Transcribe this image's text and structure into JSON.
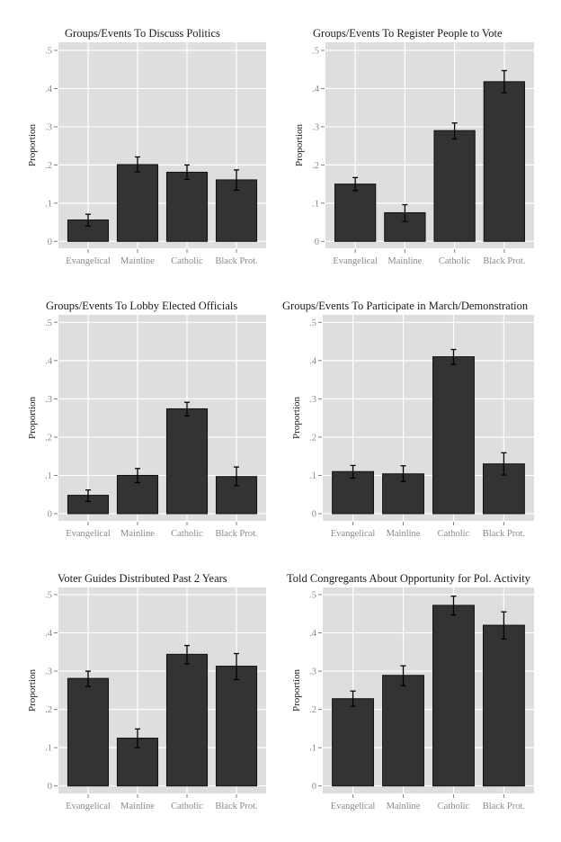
{
  "colors": {
    "panel_background": "#dedede",
    "grid": "#ffffff",
    "bar_fill": "#333333",
    "bar_border": "#111111",
    "errorbar": "#000000",
    "tick": "#7f7f7f"
  },
  "chart_data": [
    {
      "type": "bar",
      "title": "Groups/Events To Discuss Politics",
      "xlabel": "",
      "ylabel": "Proportion",
      "categories": [
        "Evangelical",
        "Mainline",
        "Catholic",
        "Black Prot."
      ],
      "values": [
        0.056,
        0.201,
        0.181,
        0.161
      ],
      "error_low": [
        0.04,
        0.182,
        0.162,
        0.134
      ],
      "error_high": [
        0.071,
        0.221,
        0.2,
        0.187
      ],
      "ylim": [
        0,
        0.5
      ],
      "yticks": [
        0,
        0.1,
        0.2,
        0.3,
        0.4,
        0.5
      ],
      "ytick_labels": [
        "0",
        ".1",
        ".2",
        ".3",
        ".4",
        ".5"
      ],
      "grid": true,
      "legend": "none"
    },
    {
      "type": "bar",
      "title": "Groups/Events To Register People to Vote",
      "xlabel": "",
      "ylabel": "Proportion",
      "categories": [
        "Evangelical",
        "Mainline",
        "Catholic",
        "Black Prot."
      ],
      "values": [
        0.15,
        0.075,
        0.29,
        0.418
      ],
      "error_low": [
        0.133,
        0.052,
        0.268,
        0.389
      ],
      "error_high": [
        0.167,
        0.096,
        0.31,
        0.447
      ],
      "ylim": [
        0,
        0.5
      ],
      "yticks": [
        0,
        0.1,
        0.2,
        0.3,
        0.4,
        0.5
      ],
      "ytick_labels": [
        "0",
        ".1",
        ".2",
        ".3",
        ".4",
        ".5"
      ],
      "grid": true,
      "legend": "none"
    },
    {
      "type": "bar",
      "title": "Groups/Events To Lobby Elected Officials",
      "xlabel": "",
      "ylabel": "Proportion",
      "categories": [
        "Evangelical",
        "Mainline",
        "Catholic",
        "Black Prot."
      ],
      "values": [
        0.048,
        0.1,
        0.274,
        0.097
      ],
      "error_low": [
        0.032,
        0.081,
        0.255,
        0.073
      ],
      "error_high": [
        0.062,
        0.118,
        0.291,
        0.122
      ],
      "ylim": [
        0,
        0.5
      ],
      "yticks": [
        0,
        0.1,
        0.2,
        0.3,
        0.4,
        0.5
      ],
      "ytick_labels": [
        "0",
        ".1",
        ".2",
        ".3",
        ".4",
        ".5"
      ],
      "grid": true,
      "legend": "none"
    },
    {
      "type": "bar",
      "title": "Groups/Events To Participate in March/Demonstration",
      "xlabel": "",
      "ylabel": "Proportion",
      "categories": [
        "Evangelical",
        "Mainline",
        "Catholic",
        "Black Prot."
      ],
      "values": [
        0.11,
        0.104,
        0.41,
        0.13
      ],
      "error_low": [
        0.093,
        0.084,
        0.39,
        0.101
      ],
      "error_high": [
        0.126,
        0.125,
        0.429,
        0.159
      ],
      "ylim": [
        0,
        0.5
      ],
      "yticks": [
        0,
        0.1,
        0.2,
        0.3,
        0.4,
        0.5
      ],
      "ytick_labels": [
        "0",
        ".1",
        ".2",
        ".3",
        ".4",
        ".5"
      ],
      "grid": true,
      "legend": "none"
    },
    {
      "type": "bar",
      "title": "Voter Guides Distributed Past 2 Years",
      "xlabel": "",
      "ylabel": "Proportion",
      "categories": [
        "Evangelical",
        "Mainline",
        "Catholic",
        "Black Prot."
      ],
      "values": [
        0.281,
        0.125,
        0.344,
        0.313
      ],
      "error_low": [
        0.26,
        0.1,
        0.319,
        0.278
      ],
      "error_high": [
        0.3,
        0.149,
        0.367,
        0.346
      ],
      "ylim": [
        0,
        0.5
      ],
      "yticks": [
        0,
        0.1,
        0.2,
        0.3,
        0.4,
        0.5
      ],
      "ytick_labels": [
        "0",
        ".1",
        ".2",
        ".3",
        ".4",
        ".5"
      ],
      "grid": true,
      "legend": "none"
    },
    {
      "type": "bar",
      "title": "Told Congregants About Opportunity for Pol. Activity",
      "xlabel": "",
      "ylabel": "Proportion",
      "categories": [
        "Evangelical",
        "Mainline",
        "Catholic",
        "Black Prot."
      ],
      "values": [
        0.228,
        0.289,
        0.472,
        0.42
      ],
      "error_low": [
        0.208,
        0.262,
        0.447,
        0.384
      ],
      "error_high": [
        0.248,
        0.314,
        0.496,
        0.455
      ],
      "ylim": [
        0,
        0.5
      ],
      "yticks": [
        0,
        0.1,
        0.2,
        0.3,
        0.4,
        0.5
      ],
      "ytick_labels": [
        "0",
        ".1",
        ".2",
        ".3",
        ".4",
        ".5"
      ],
      "grid": true,
      "legend": "none"
    }
  ]
}
